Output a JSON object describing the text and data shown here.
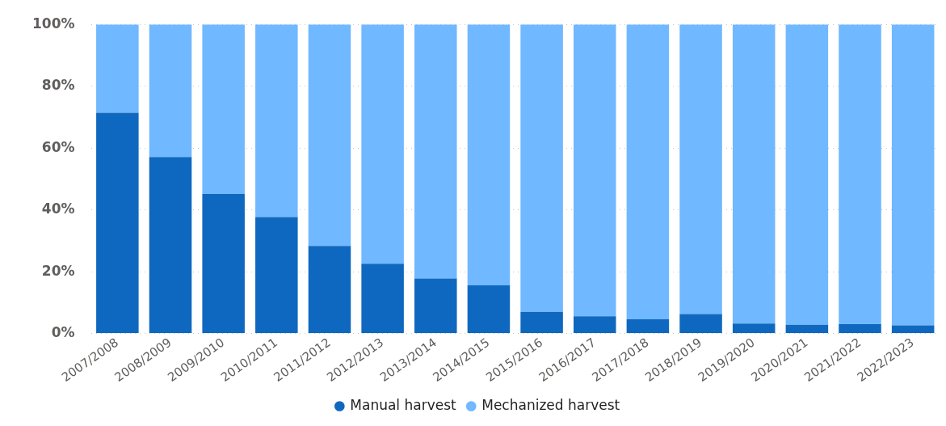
{
  "chart_data": {
    "type": "bar",
    "stacked": true,
    "categories": [
      "2007/2008",
      "2008/2009",
      "2009/2010",
      "2010/2011",
      "2011/2012",
      "2012/2013",
      "2013/2014",
      "2014/2015",
      "2015/2016",
      "2016/2017",
      "2017/2018",
      "2018/2019",
      "2019/2020",
      "2020/2021",
      "2021/2022",
      "2022/2023"
    ],
    "series": [
      {
        "name": "Manual harvest",
        "color": "#0f68bf",
        "values": [
          71.4,
          57.1,
          45.1,
          37.7,
          28.3,
          22.6,
          17.8,
          15.6,
          7.0,
          5.6,
          4.6,
          6.3,
          3.2,
          2.8,
          3.0,
          2.6
        ]
      },
      {
        "name": "Mechanized harvest",
        "color": "#70b8ff",
        "values": [
          28.6,
          42.9,
          54.9,
          62.3,
          71.7,
          77.4,
          82.2,
          84.4,
          93.0,
          94.4,
          95.4,
          93.7,
          96.8,
          97.2,
          97.0,
          97.4
        ]
      }
    ],
    "ylim": [
      0,
      100
    ],
    "yticks": [
      {
        "value": 0,
        "label": "0%"
      },
      {
        "value": 20,
        "label": "20%"
      },
      {
        "value": 40,
        "label": "40%"
      },
      {
        "value": 60,
        "label": "60%"
      },
      {
        "value": 80,
        "label": "80%"
      },
      {
        "value": 100,
        "label": "100%"
      }
    ],
    "grid": "y",
    "legend": "bottom"
  }
}
